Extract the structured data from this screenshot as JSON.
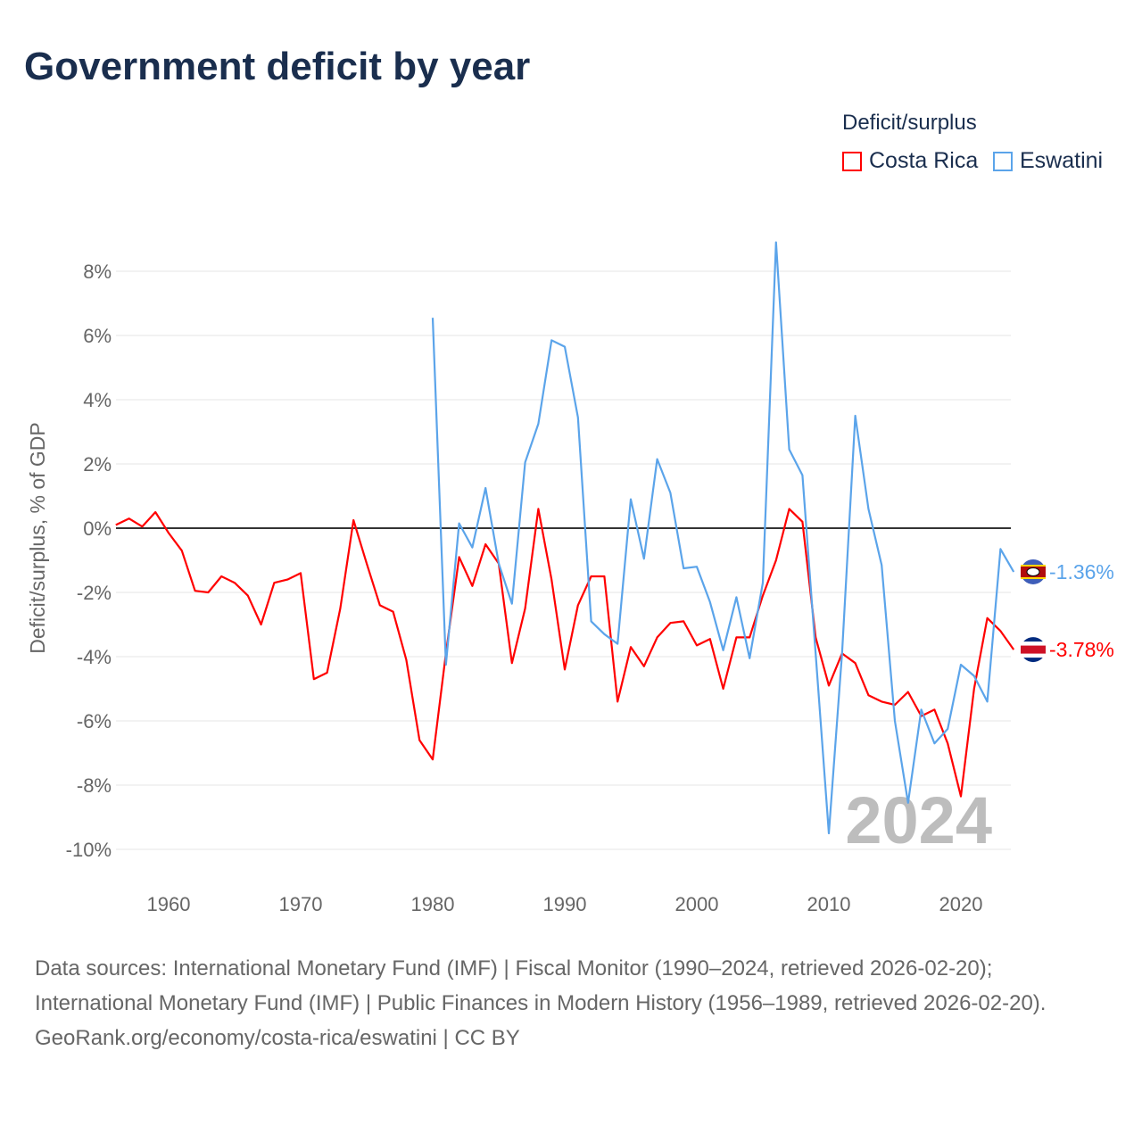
{
  "title": "Government deficit by year",
  "legend": {
    "title": "Deficit/surplus",
    "items": [
      "Costa Rica",
      "Eswatini"
    ]
  },
  "footer": {
    "sources": "Data sources: International Monetary Fund (IMF) | Fiscal Monitor (1990–2024, retrieved 2026-02-20); International Monetary Fund (IMF) | Public Finances in Modern History (1956–1989, retrieved 2026-02-20).",
    "credit": "GeoRank.org/economy/costa-rica/eswatini | CC BY"
  },
  "chart_data": {
    "type": "line",
    "title": "Government deficit by year",
    "ylabel": "Deficit/surplus, % of GDP",
    "xlabel": "",
    "xlim": [
      1956,
      2024
    ],
    "ylim": [
      -11,
      9.5
    ],
    "xticks": [
      1960,
      1970,
      1980,
      1990,
      2000,
      2010,
      2020
    ],
    "xtick_labels": [
      "1960",
      "1970",
      "1980",
      "1990",
      "2000",
      "2010",
      "2020"
    ],
    "yticks": [
      8,
      6,
      4,
      2,
      0,
      -2,
      -4,
      -6,
      -8,
      -10
    ],
    "ytick_labels": [
      "8%",
      "6%",
      "4%",
      "2%",
      "0%",
      "-2%",
      "-4%",
      "-6%",
      "-8%",
      "-10%"
    ],
    "year_watermark": "2024",
    "series": [
      {
        "name": "Costa Rica",
        "color": "#ff0000",
        "end_label": "-3.78%",
        "start": 1956,
        "values": [
          0.1,
          0.3,
          0.05,
          0.5,
          -0.15,
          -0.7,
          -1.95,
          -2.0,
          -1.5,
          -1.7,
          -2.1,
          -3.0,
          -1.7,
          -1.6,
          -1.4,
          -4.7,
          -4.5,
          -2.5,
          0.25,
          -1.1,
          -2.4,
          -2.6,
          -4.1,
          -6.6,
          -7.2,
          -3.9,
          -0.9,
          -1.8,
          -0.5,
          -1.1,
          -4.2,
          -2.5,
          0.6,
          -1.6,
          -4.4,
          -2.4,
          -1.5,
          -1.5,
          -5.4,
          -3.7,
          -4.3,
          -3.4,
          -2.95,
          -2.9,
          -3.65,
          -3.45,
          -5.0,
          -3.4,
          -3.4,
          -2.1,
          -1.0,
          0.6,
          0.2,
          -3.4,
          -4.9,
          -3.9,
          -4.2,
          -5.2,
          -5.4,
          -5.5,
          -5.1,
          -5.85,
          -5.65,
          -6.7,
          -8.35,
          -5.0,
          -2.8,
          -3.2,
          -3.78
        ]
      },
      {
        "name": "Eswatini",
        "color": "#5ba4ea",
        "end_label": "-1.36%",
        "start": 1980,
        "values": [
          6.55,
          -4.25,
          0.15,
          -0.6,
          1.25,
          -1.1,
          -2.35,
          2.05,
          3.25,
          5.85,
          5.65,
          3.45,
          -2.9,
          -3.3,
          -3.6,
          0.9,
          -0.95,
          2.15,
          1.1,
          -1.25,
          -1.2,
          -2.3,
          -3.8,
          -2.15,
          -4.05,
          -1.7,
          8.9,
          2.45,
          1.65,
          -3.9,
          -9.5,
          -3.9,
          3.5,
          0.6,
          -1.15,
          -6.0,
          -8.55,
          -5.65,
          -6.7,
          -6.25,
          -4.25,
          -4.6,
          -5.4,
          -0.65,
          -1.36
        ]
      }
    ]
  }
}
